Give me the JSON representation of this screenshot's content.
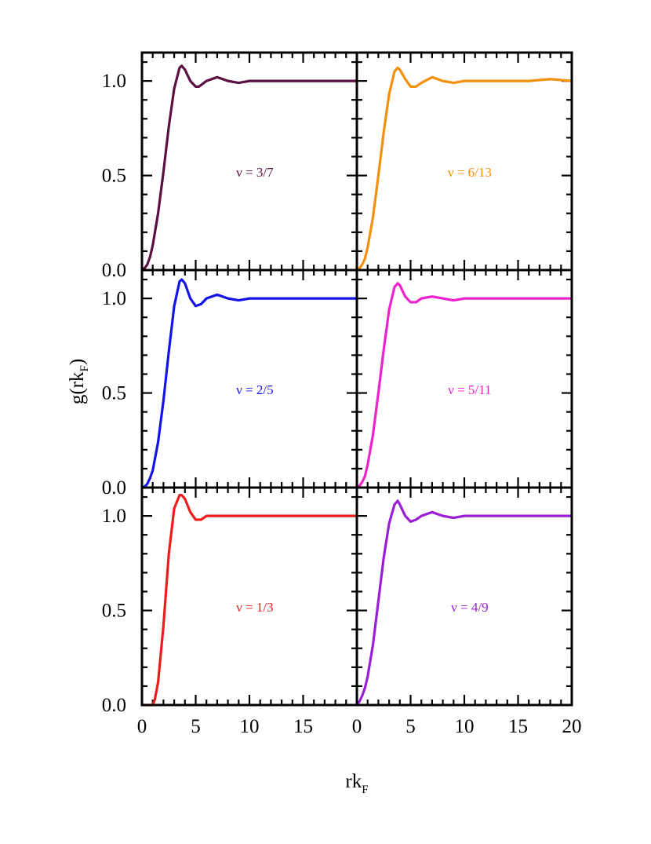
{
  "chart_data": {
    "type": "line",
    "layout": "3x2 grid of panels, shared axes",
    "xlabel": {
      "main": "rk",
      "subscript": "F"
    },
    "ylabel": {
      "main": "g(rk",
      "subscript": "F",
      "close": ")"
    },
    "xlim": [
      0,
      20
    ],
    "ylim": [
      0,
      1.15
    ],
    "x_ticks": [
      "0",
      "5",
      "10",
      "15"
    ],
    "x_ticks_last_column": [
      "0",
      "5",
      "10",
      "15",
      "20"
    ],
    "y_ticks": [
      "0.0",
      "0.5",
      "1.0"
    ],
    "grid": false,
    "panels": [
      {
        "row": 0,
        "col": 0,
        "label": "ν = 3/7",
        "color": "#5a1040",
        "x": [
          0,
          0.25,
          0.5,
          0.75,
          1,
          1.5,
          2,
          2.5,
          3,
          3.5,
          3.7,
          4,
          4.5,
          5,
          5.3,
          6,
          7,
          8,
          9,
          10,
          12,
          14,
          16,
          18,
          20
        ],
        "y": [
          0,
          0.01,
          0.03,
          0.07,
          0.13,
          0.3,
          0.52,
          0.76,
          0.96,
          1.07,
          1.08,
          1.06,
          1.0,
          0.97,
          0.97,
          1.0,
          1.02,
          1.0,
          0.99,
          1.0,
          1.0,
          1.0,
          1.0,
          1.0,
          1.0
        ]
      },
      {
        "row": 0,
        "col": 1,
        "label": "ν = 6/13",
        "color": "#f5900c",
        "x": [
          0,
          0.25,
          0.5,
          0.75,
          1,
          1.5,
          2,
          2.5,
          3,
          3.5,
          3.8,
          4,
          4.5,
          5,
          5.5,
          6,
          7,
          8,
          9,
          10,
          12,
          14,
          16,
          18,
          20
        ],
        "y": [
          0,
          0.01,
          0.03,
          0.06,
          0.12,
          0.28,
          0.5,
          0.73,
          0.93,
          1.05,
          1.07,
          1.06,
          1.01,
          0.97,
          0.97,
          0.99,
          1.02,
          1.0,
          0.99,
          1.0,
          1.0,
          1.0,
          1.0,
          1.01,
          1.0
        ]
      },
      {
        "row": 1,
        "col": 0,
        "label": "ν = 2/5",
        "color": "#1414e8",
        "x": [
          0,
          0.25,
          0.5,
          0.75,
          1,
          1.5,
          2,
          2.5,
          3,
          3.5,
          3.7,
          4,
          4.5,
          5,
          5.5,
          6,
          7,
          8,
          9,
          10,
          12,
          14,
          16,
          18,
          20
        ],
        "y": [
          0,
          0.005,
          0.02,
          0.05,
          0.09,
          0.24,
          0.46,
          0.72,
          0.96,
          1.09,
          1.1,
          1.08,
          1.0,
          0.96,
          0.97,
          1.0,
          1.02,
          1.0,
          0.99,
          1.0,
          1.0,
          1.0,
          1.0,
          1.0,
          1.0
        ]
      },
      {
        "row": 1,
        "col": 1,
        "label": "ν = 5/11",
        "color": "#ee22cc",
        "x": [
          0,
          0.25,
          0.5,
          0.75,
          1,
          1.5,
          2,
          2.5,
          3,
          3.5,
          3.8,
          4,
          4.5,
          5,
          5.5,
          6,
          7,
          8,
          9,
          10,
          12,
          14,
          16,
          18,
          20
        ],
        "y": [
          0,
          0.01,
          0.03,
          0.06,
          0.12,
          0.28,
          0.5,
          0.73,
          0.94,
          1.06,
          1.08,
          1.07,
          1.01,
          0.98,
          0.98,
          1.0,
          1.01,
          1.0,
          0.99,
          1.0,
          1.0,
          1.0,
          1.0,
          1.0,
          1.0
        ]
      },
      {
        "row": 2,
        "col": 0,
        "label": "ν = 1/3",
        "color": "#ee1c1c",
        "x": [
          0,
          0.5,
          1,
          1.2,
          1.5,
          2,
          2.5,
          3,
          3.5,
          3.7,
          4,
          4.5,
          5,
          5.5,
          6,
          7,
          8,
          9,
          10,
          12,
          14,
          16,
          18,
          20
        ],
        "y": [
          0,
          0,
          0.0,
          0.03,
          0.12,
          0.42,
          0.8,
          1.04,
          1.11,
          1.11,
          1.09,
          1.02,
          0.98,
          0.98,
          1.0,
          1.0,
          1.0,
          1.0,
          1.0,
          1.0,
          1.0,
          1.0,
          1.0,
          1.0
        ]
      },
      {
        "row": 2,
        "col": 1,
        "label": "ν = 4/9",
        "color": "#9a1ed6",
        "x": [
          0,
          0.25,
          0.5,
          0.75,
          1,
          1.5,
          2,
          2.5,
          3,
          3.5,
          3.8,
          4,
          4.5,
          5,
          5.5,
          6,
          7,
          8,
          9,
          10,
          12,
          14,
          16,
          18,
          20
        ],
        "y": [
          0,
          0.02,
          0.05,
          0.09,
          0.15,
          0.32,
          0.55,
          0.78,
          0.96,
          1.06,
          1.08,
          1.06,
          1.0,
          0.97,
          0.98,
          1.0,
          1.02,
          1.0,
          0.99,
          1.0,
          1.0,
          1.0,
          1.0,
          1.0,
          1.0
        ]
      }
    ]
  }
}
